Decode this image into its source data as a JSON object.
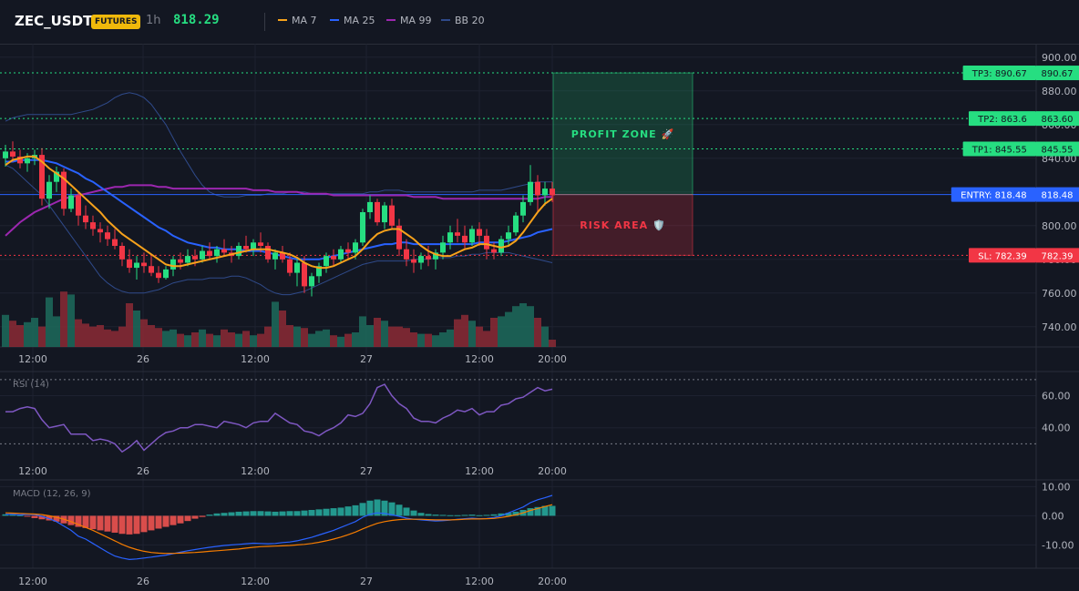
{
  "header": {
    "symbol": "ZEC_USDT",
    "badge": "FUTURES",
    "timeframe": "1h",
    "price": "818.29"
  },
  "legend": [
    {
      "label": "MA 7",
      "color": "#f7a21b"
    },
    {
      "label": "MA 25",
      "color": "#2962ff"
    },
    {
      "label": "MA 99",
      "color": "#9c27b0"
    },
    {
      "label": "BB 20",
      "color": "#2f4a8a"
    }
  ],
  "colors": {
    "up": "#26de81",
    "down": "#f23645",
    "background": "#131722",
    "grid": "#1e2230",
    "text": "#b2b5be"
  },
  "chart_data": [
    {
      "type": "candlestick",
      "pane": "price",
      "ylim": [
        728,
        908
      ],
      "yticks": [
        "900.00",
        "880.00",
        "860.00",
        "840.00",
        "820.00",
        "800.00",
        "780.00",
        "760.00",
        "740.00"
      ],
      "xticks": [
        "12:00",
        "26",
        "12:00",
        "27",
        "12:00",
        "20:00"
      ],
      "candles": [
        [
          840,
          848,
          835,
          844
        ],
        [
          844,
          850,
          838,
          841
        ],
        [
          841,
          845,
          834,
          837
        ],
        [
          837,
          843,
          832,
          840
        ],
        [
          840,
          845,
          836,
          842
        ],
        [
          842,
          846,
          812,
          816
        ],
        [
          816,
          830,
          810,
          826
        ],
        [
          826,
          835,
          820,
          832
        ],
        [
          832,
          834,
          806,
          810
        ],
        [
          810,
          822,
          808,
          818
        ],
        [
          818,
          820,
          800,
          806
        ],
        [
          806,
          812,
          798,
          802
        ],
        [
          802,
          806,
          794,
          798
        ],
        [
          798,
          802,
          790,
          796
        ],
        [
          796,
          800,
          788,
          792
        ],
        [
          792,
          798,
          786,
          788
        ],
        [
          788,
          790,
          776,
          780
        ],
        [
          780,
          786,
          772,
          775
        ],
        [
          775,
          782,
          768,
          778
        ],
        [
          778,
          784,
          772,
          776
        ],
        [
          776,
          782,
          770,
          772
        ],
        [
          772,
          776,
          766,
          769
        ],
        [
          769,
          776,
          768,
          774
        ],
        [
          774,
          782,
          770,
          780
        ],
        [
          780,
          784,
          774,
          778
        ],
        [
          778,
          786,
          776,
          782
        ],
        [
          782,
          786,
          776,
          780
        ],
        [
          780,
          788,
          778,
          785
        ],
        [
          785,
          790,
          780,
          782
        ],
        [
          782,
          788,
          778,
          786
        ],
        [
          786,
          792,
          782,
          784
        ],
        [
          784,
          788,
          778,
          782
        ],
        [
          782,
          790,
          780,
          788
        ],
        [
          788,
          794,
          784,
          786
        ],
        [
          786,
          792,
          782,
          790
        ],
        [
          790,
          796,
          784,
          788
        ],
        [
          788,
          790,
          778,
          780
        ],
        [
          780,
          786,
          774,
          784
        ],
        [
          784,
          788,
          778,
          780
        ],
        [
          780,
          784,
          770,
          772
        ],
        [
          772,
          780,
          764,
          778
        ],
        [
          778,
          782,
          760,
          764
        ],
        [
          764,
          772,
          758,
          770
        ],
        [
          770,
          778,
          766,
          776
        ],
        [
          776,
          784,
          772,
          782
        ],
        [
          782,
          786,
          776,
          780
        ],
        [
          780,
          788,
          778,
          786
        ],
        [
          786,
          790,
          780,
          784
        ],
        [
          784,
          792,
          780,
          790
        ],
        [
          790,
          810,
          788,
          808
        ],
        [
          808,
          818,
          804,
          814
        ],
        [
          814,
          816,
          800,
          802
        ],
        [
          802,
          814,
          798,
          812
        ],
        [
          812,
          816,
          798,
          800
        ],
        [
          800,
          804,
          782,
          786
        ],
        [
          786,
          792,
          776,
          780
        ],
        [
          780,
          786,
          772,
          778
        ],
        [
          778,
          784,
          774,
          782
        ],
        [
          782,
          788,
          776,
          780
        ],
        [
          780,
          786,
          774,
          784
        ],
        [
          784,
          794,
          780,
          790
        ],
        [
          790,
          800,
          786,
          796
        ],
        [
          796,
          804,
          790,
          794
        ],
        [
          794,
          800,
          786,
          790
        ],
        [
          790,
          800,
          788,
          798
        ],
        [
          798,
          802,
          788,
          794
        ],
        [
          794,
          798,
          780,
          786
        ],
        [
          786,
          790,
          780,
          784
        ],
        [
          784,
          794,
          782,
          792
        ],
        [
          792,
          800,
          788,
          796
        ],
        [
          796,
          808,
          794,
          806
        ],
        [
          806,
          818,
          802,
          814
        ],
        [
          814,
          836,
          812,
          826
        ],
        [
          826,
          830,
          808,
          818
        ],
        [
          818,
          826,
          812,
          822
        ],
        [
          822,
          826,
          814,
          818
        ]
      ],
      "volume": [
        22,
        18,
        15,
        17,
        20,
        14,
        34,
        21,
        38,
        36,
        19,
        16,
        14,
        15,
        12,
        11,
        14,
        30,
        25,
        19,
        15,
        13,
        11,
        12,
        9,
        8,
        10,
        12,
        9,
        8,
        12,
        10,
        9,
        11,
        8,
        9,
        14,
        31,
        25,
        15,
        14,
        13,
        9,
        11,
        12,
        8,
        7,
        9,
        10,
        21,
        15,
        20,
        18,
        14,
        14,
        13,
        10,
        9,
        9,
        8,
        10,
        12,
        19,
        22,
        18,
        14,
        11,
        20,
        21,
        24,
        28,
        30,
        28,
        20,
        14,
        5
      ],
      "ma7": [
        836,
        839,
        840,
        841,
        841,
        838,
        834,
        831,
        828,
        824,
        820,
        816,
        812,
        808,
        803,
        799,
        795,
        792,
        789,
        786,
        783,
        780,
        777,
        776,
        776,
        777,
        778,
        779,
        780,
        781,
        782,
        783,
        784,
        785,
        786,
        786,
        786,
        785,
        784,
        783,
        781,
        778,
        776,
        775,
        775,
        776,
        778,
        780,
        782,
        786,
        791,
        795,
        797,
        798,
        798,
        795,
        792,
        788,
        785,
        783,
        782,
        782,
        784,
        786,
        787,
        789,
        789,
        788,
        787,
        788,
        791,
        796,
        802,
        808,
        813,
        816
      ],
      "ma25": [
        838,
        838,
        839,
        839,
        839,
        839,
        838,
        837,
        835,
        833,
        831,
        828,
        826,
        823,
        820,
        817,
        814,
        811,
        808,
        805,
        802,
        799,
        797,
        794,
        792,
        790,
        789,
        788,
        787,
        787,
        786,
        786,
        786,
        785,
        785,
        785,
        784,
        783,
        782,
        781,
        780,
        780,
        780,
        780,
        781,
        782,
        783,
        784,
        785,
        786,
        787,
        788,
        789,
        789,
        790,
        790,
        789,
        789,
        789,
        789,
        789,
        789,
        789,
        789,
        789,
        790,
        790,
        790,
        790,
        791,
        792,
        793,
        794,
        796,
        797,
        798
      ],
      "ma99": [
        794,
        798,
        802,
        805,
        808,
        810,
        812,
        814,
        816,
        817,
        818,
        819,
        820,
        821,
        822,
        823,
        823,
        824,
        824,
        824,
        824,
        823,
        823,
        822,
        822,
        822,
        822,
        822,
        822,
        822,
        822,
        822,
        822,
        822,
        821,
        821,
        821,
        820,
        820,
        820,
        820,
        819,
        819,
        819,
        819,
        818,
        818,
        818,
        818,
        818,
        818,
        818,
        818,
        818,
        818,
        818,
        817,
        817,
        817,
        817,
        816,
        816,
        816,
        816,
        816,
        816,
        816,
        816,
        816,
        816,
        816,
        816,
        816,
        816,
        817,
        817
      ],
      "bb_upper": [
        862,
        864,
        865,
        866,
        866,
        866,
        866,
        866,
        866,
        866,
        867,
        868,
        869,
        871,
        873,
        876,
        878,
        879,
        878,
        876,
        872,
        866,
        860,
        852,
        844,
        837,
        830,
        824,
        820,
        818,
        817,
        817,
        817,
        818,
        818,
        818,
        819,
        819,
        819,
        820,
        820,
        820,
        819,
        819,
        819,
        819,
        819,
        819,
        819,
        819,
        820,
        820,
        821,
        821,
        821,
        820,
        820,
        820,
        820,
        820,
        820,
        820,
        820,
        820,
        820,
        821,
        821,
        821,
        821,
        822,
        823,
        824,
        825,
        826,
        826,
        826
      ],
      "bb_lower": [
        836,
        834,
        830,
        826,
        822,
        818,
        812,
        806,
        800,
        794,
        788,
        782,
        776,
        770,
        766,
        763,
        761,
        760,
        760,
        760,
        761,
        762,
        764,
        766,
        767,
        768,
        768,
        768,
        769,
        769,
        769,
        770,
        770,
        769,
        767,
        765,
        762,
        760,
        759,
        759,
        760,
        761,
        763,
        765,
        767,
        769,
        771,
        773,
        775,
        777,
        778,
        779,
        779,
        779,
        779,
        779,
        780,
        780,
        780,
        781,
        781,
        781,
        782,
        782,
        783,
        783,
        784,
        784,
        784,
        784,
        783,
        782,
        781,
        780,
        779,
        778
      ]
    },
    {
      "type": "line",
      "pane": "rsi",
      "title": "RSI (14)",
      "ylim": [
        20,
        75
      ],
      "yticks": [
        "60.00",
        "40.00"
      ],
      "bands": [
        70,
        30
      ],
      "values": [
        50,
        50,
        52,
        53,
        52,
        45,
        40,
        41,
        42,
        36,
        36,
        36,
        32,
        33,
        32,
        30,
        25,
        28,
        32,
        26,
        30,
        34,
        37,
        38,
        40,
        40,
        42,
        42,
        41,
        40,
        44,
        43,
        42,
        40,
        43,
        44,
        44,
        49,
        46,
        43,
        42,
        38,
        37,
        35,
        38,
        40,
        43,
        48,
        47,
        49,
        55,
        65,
        67,
        60,
        55,
        52,
        46,
        44,
        44,
        43,
        46,
        48,
        51,
        50,
        52,
        48,
        50,
        50,
        54,
        55,
        58,
        59,
        62,
        65,
        63,
        64
      ],
      "xticks": [
        "12:00",
        "26",
        "12:00",
        "27",
        "12:00",
        "20:00"
      ]
    },
    {
      "type": "line",
      "pane": "macd",
      "title": "MACD (12, 26, 9)",
      "ylim": [
        -18,
        12
      ],
      "yticks": [
        "10.00",
        "0.00",
        "-10.00"
      ],
      "macd": [
        0.5,
        0.5,
        0.3,
        0.5,
        0.4,
        -0.2,
        -1,
        -2,
        -3.5,
        -5,
        -7,
        -8,
        -9.5,
        -11,
        -12.5,
        -13.8,
        -14.5,
        -15,
        -14.8,
        -14.5,
        -14.2,
        -13.8,
        -13.5,
        -13,
        -12.5,
        -12,
        -11.6,
        -11.2,
        -10.8,
        -10.5,
        -10.2,
        -10,
        -9.8,
        -9.6,
        -9.4,
        -9.5,
        -9.6,
        -9.5,
        -9.2,
        -9,
        -8.6,
        -8,
        -7.4,
        -6.6,
        -5.8,
        -5,
        -4,
        -3,
        -2,
        -0.5,
        0.5,
        1,
        0.8,
        0.3,
        -0.2,
        -0.8,
        -1.2,
        -1.4,
        -1.6,
        -1.8,
        -1.7,
        -1.5,
        -1.2,
        -1,
        -0.8,
        -1,
        -0.9,
        -0.6,
        0,
        1,
        2,
        3,
        4.5,
        5.5,
        6.2,
        7
      ],
      "signal": [
        1,
        0.9,
        0.8,
        0.7,
        0.6,
        0.4,
        0,
        -0.5,
        -1.2,
        -2,
        -3,
        -4,
        -5,
        -6.2,
        -7.4,
        -8.6,
        -9.8,
        -10.8,
        -11.6,
        -12.2,
        -12.6,
        -12.8,
        -12.9,
        -12.9,
        -12.8,
        -12.7,
        -12.6,
        -12.4,
        -12.2,
        -12,
        -11.8,
        -11.6,
        -11.4,
        -11.1,
        -10.8,
        -10.6,
        -10.5,
        -10.4,
        -10.3,
        -10.2,
        -10,
        -9.8,
        -9.5,
        -9.1,
        -8.6,
        -8,
        -7.3,
        -6.5,
        -5.6,
        -4.5,
        -3.5,
        -2.6,
        -2,
        -1.6,
        -1.3,
        -1.2,
        -1.2,
        -1.2,
        -1.3,
        -1.4,
        -1.4,
        -1.4,
        -1.3,
        -1.2,
        -1.1,
        -1.1,
        -1,
        -0.9,
        -0.6,
        -0.2,
        0.3,
        1,
        1.8,
        2.5,
        3.2,
        3.8
      ],
      "histogram": [
        0.5,
        0.4,
        0.2,
        -0.2,
        -0.8,
        -1.2,
        -1.6,
        -2,
        -2.6,
        -3.2,
        -3.8,
        -4.2,
        -4.6,
        -5,
        -5.4,
        -5.8,
        -6.2,
        -6.4,
        -6.2,
        -5.6,
        -5,
        -4.4,
        -3.8,
        -3.2,
        -2.6,
        -1.8,
        -1,
        -0.4,
        0.4,
        0.8,
        1,
        1.2,
        1.4,
        1.5,
        1.6,
        1.6,
        1.5,
        1.4,
        1.5,
        1.6,
        1.6,
        1.8,
        2,
        2.2,
        2.4,
        2.6,
        2.8,
        3.2,
        3.6,
        4.4,
        5.2,
        5.6,
        5.2,
        4.6,
        3.8,
        2.8,
        1.8,
        1,
        0.6,
        0.4,
        0.3,
        0.2,
        0.2,
        0.3,
        0.4,
        0.2,
        0.3,
        0.5,
        0.8,
        1,
        1.4,
        2,
        2.6,
        3,
        3.4,
        3.4
      ],
      "xticks": [
        "12:00",
        "26",
        "12:00",
        "27",
        "12:00",
        "20:00"
      ]
    }
  ],
  "trade": {
    "tp3": {
      "label": "TP3: 890.67",
      "price_label": "890.67",
      "value": 890.67
    },
    "tp2": {
      "label": "TP2: 863.6",
      "price_label": "863.60",
      "value": 863.6
    },
    "tp1": {
      "label": "TP1: 845.55",
      "price_label": "845.55",
      "value": 845.55
    },
    "entry": {
      "label": "ENTRY: 818.48",
      "price_label": "818.48",
      "value": 818.48
    },
    "sl": {
      "label": "SL: 782.39",
      "price_label": "782.39",
      "value": 782.39
    },
    "profit_zone": "PROFIT ZONE 🚀",
    "risk_area": "RISK AREA 🛡️"
  }
}
